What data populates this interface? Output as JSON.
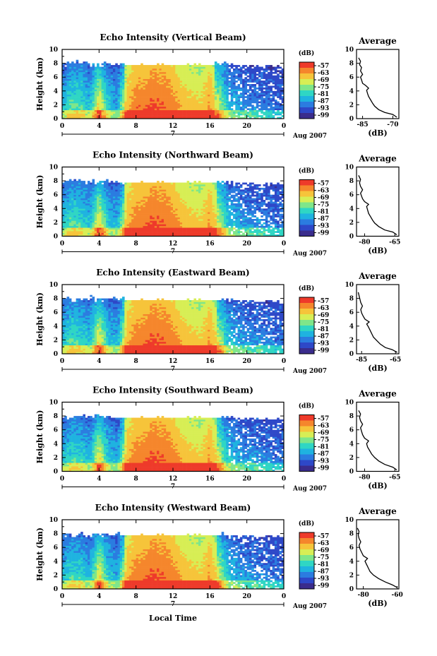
{
  "figure": {
    "bottom_xlabel": "Local Time",
    "colors": {
      "scale": [
        "#3a2c8c",
        "#2e48c8",
        "#2b7ce0",
        "#1fb3e0",
        "#2fd6c4",
        "#7ee68a",
        "#d7ee55",
        "#f6c43a",
        "#f5862c",
        "#ee3a2a"
      ]
    }
  },
  "chart_data": [
    {
      "type": "heatmap",
      "title": "Echo Intensity (Vertical Beam)",
      "ylabel": "Height (km)",
      "xlim": [
        0,
        24
      ],
      "ylim": [
        0,
        10
      ],
      "xticks": [
        "0",
        "4",
        "8",
        "12",
        "16",
        "20",
        "0"
      ],
      "yticks": [
        "0",
        "2",
        "4",
        "6",
        "8",
        "10"
      ],
      "date_marker": "7",
      "date_label": "Aug 2007",
      "colorbar": {
        "unit": "(dB)",
        "ticks": [
          "-57",
          "-63",
          "-69",
          "-75",
          "-81",
          "-87",
          "-93",
          "-99"
        ]
      },
      "intensity_profile": [
        0.4,
        0.55,
        0.55,
        0.42,
        0.82,
        0.45,
        0.35,
        0.85,
        0.95,
        0.96,
        0.99,
        0.98,
        0.93,
        0.85,
        0.82,
        0.8,
        0.9,
        0.7,
        0.4,
        0.35,
        0.3,
        0.28,
        0.25,
        0.22
      ],
      "average": {
        "title": "Average",
        "xlabel": "(dB)",
        "xticks": [
          "-85",
          "-70"
        ],
        "xlim": [
          -88,
          -67
        ],
        "ylim": [
          0,
          10
        ],
        "yticks": [
          "0",
          "2",
          "4",
          "6",
          "8",
          "10"
        ],
        "points": [
          [
            -68,
            0.2
          ],
          [
            -70,
            0.6
          ],
          [
            -74,
            0.9
          ],
          [
            -77,
            1.3
          ],
          [
            -79,
            1.8
          ],
          [
            -80,
            2.2
          ],
          [
            -81,
            2.7
          ],
          [
            -82,
            3.2
          ],
          [
            -82.5,
            3.6
          ],
          [
            -83,
            4.1
          ],
          [
            -82,
            4.4
          ],
          [
            -83.5,
            4.8
          ],
          [
            -85,
            5.1
          ],
          [
            -85.5,
            5.6
          ],
          [
            -86,
            6.0
          ],
          [
            -85,
            6.4
          ],
          [
            -86,
            6.9
          ],
          [
            -85.5,
            7.4
          ],
          [
            -86.5,
            7.8
          ],
          [
            -86,
            8.3
          ],
          [
            -87,
            8.8
          ]
        ]
      }
    },
    {
      "type": "heatmap",
      "title": "Echo Intensity (Northward Beam)",
      "ylabel": "Height (km)",
      "xlim": [
        0,
        24
      ],
      "ylim": [
        0,
        10
      ],
      "xticks": [
        "0",
        "4",
        "8",
        "12",
        "16",
        "20",
        "0"
      ],
      "yticks": [
        "0",
        "2",
        "4",
        "6",
        "8",
        "10"
      ],
      "date_marker": "7",
      "date_label": "Aug 2007",
      "colorbar": {
        "unit": "(dB)",
        "ticks": [
          "-57",
          "-63",
          "-69",
          "-75",
          "-81",
          "-87",
          "-93",
          "-99"
        ]
      },
      "intensity_profile": [
        0.42,
        0.55,
        0.52,
        0.42,
        0.8,
        0.45,
        0.38,
        0.86,
        0.94,
        0.96,
        0.99,
        0.98,
        0.93,
        0.86,
        0.82,
        0.8,
        0.9,
        0.72,
        0.42,
        0.36,
        0.32,
        0.3,
        0.28,
        0.25
      ],
      "average": {
        "title": "Average",
        "xlabel": "(dB)",
        "xticks": [
          "-80",
          "-65"
        ],
        "xlim": [
          -84,
          -63
        ],
        "ylim": [
          0,
          10
        ],
        "yticks": [
          "0",
          "2",
          "4",
          "6",
          "8",
          "10"
        ],
        "points": [
          [
            -64,
            0.2
          ],
          [
            -66,
            0.6
          ],
          [
            -70,
            0.9
          ],
          [
            -73,
            1.4
          ],
          [
            -75,
            1.9
          ],
          [
            -76,
            2.3
          ],
          [
            -77,
            2.8
          ],
          [
            -78,
            3.3
          ],
          [
            -78.5,
            3.8
          ],
          [
            -79,
            4.3
          ],
          [
            -78,
            4.6
          ],
          [
            -80,
            5.0
          ],
          [
            -81,
            5.4
          ],
          [
            -81.5,
            5.8
          ],
          [
            -82,
            6.2
          ],
          [
            -81,
            6.7
          ],
          [
            -82,
            7.2
          ],
          [
            -82.5,
            7.7
          ],
          [
            -82,
            8.2
          ],
          [
            -83,
            8.8
          ]
        ]
      }
    },
    {
      "type": "heatmap",
      "title": "Echo Intensity (Eastward Beam)",
      "ylabel": "Height (km)",
      "xlim": [
        0,
        24
      ],
      "ylim": [
        0,
        10
      ],
      "xticks": [
        "0",
        "4",
        "8",
        "12",
        "16",
        "20",
        "0"
      ],
      "yticks": [
        "0",
        "2",
        "4",
        "6",
        "8",
        "10"
      ],
      "date_marker": "7",
      "date_label": "Aug 2007",
      "colorbar": {
        "unit": "(dB)",
        "ticks": [
          "-57",
          "-63",
          "-69",
          "-75",
          "-81",
          "-87",
          "-93",
          "-99"
        ]
      },
      "intensity_profile": [
        0.42,
        0.55,
        0.52,
        0.42,
        0.8,
        0.45,
        0.38,
        0.86,
        0.94,
        0.96,
        0.99,
        0.98,
        0.93,
        0.86,
        0.82,
        0.8,
        0.9,
        0.72,
        0.42,
        0.36,
        0.32,
        0.3,
        0.28,
        0.25
      ],
      "average": {
        "title": "Average",
        "xlabel": "(dB)",
        "xticks": [
          "-85",
          "-65"
        ],
        "xlim": [
          -88,
          -63
        ],
        "ylim": [
          0,
          10
        ],
        "yticks": [
          "0",
          "2",
          "4",
          "6",
          "8",
          "10"
        ],
        "points": [
          [
            -64,
            0.2
          ],
          [
            -67,
            0.6
          ],
          [
            -71,
            0.9
          ],
          [
            -74,
            1.4
          ],
          [
            -76,
            1.9
          ],
          [
            -78,
            2.4
          ],
          [
            -79,
            2.9
          ],
          [
            -80,
            3.4
          ],
          [
            -81,
            3.9
          ],
          [
            -82,
            4.3
          ],
          [
            -80.5,
            4.6
          ],
          [
            -83,
            5.0
          ],
          [
            -84,
            5.4
          ],
          [
            -85,
            5.9
          ],
          [
            -85.5,
            6.4
          ],
          [
            -84.5,
            6.9
          ],
          [
            -85.5,
            7.4
          ],
          [
            -86,
            7.9
          ],
          [
            -86.5,
            8.4
          ],
          [
            -87,
            8.9
          ]
        ]
      }
    },
    {
      "type": "heatmap",
      "title": "Echo Intensity (Southward Beam)",
      "ylabel": "Height (km)",
      "xlim": [
        0,
        24
      ],
      "ylim": [
        0,
        10
      ],
      "xticks": [
        "0",
        "4",
        "8",
        "12",
        "16",
        "20",
        "0"
      ],
      "yticks": [
        "0",
        "2",
        "4",
        "6",
        "8",
        "10"
      ],
      "date_marker": "7",
      "date_label": "Aug 2007",
      "colorbar": {
        "unit": "(dB)",
        "ticks": [
          "-57",
          "-63",
          "-69",
          "-75",
          "-81",
          "-87",
          "-93",
          "-99"
        ]
      },
      "intensity_profile": [
        0.4,
        0.52,
        0.5,
        0.4,
        0.8,
        0.45,
        0.36,
        0.86,
        0.94,
        0.96,
        0.99,
        0.98,
        0.93,
        0.86,
        0.82,
        0.8,
        0.9,
        0.72,
        0.42,
        0.36,
        0.32,
        0.3,
        0.28,
        0.25
      ],
      "average": {
        "title": "Average",
        "xlabel": "(dB)",
        "xticks": [
          "-80",
          "-65"
        ],
        "xlim": [
          -84,
          -63
        ],
        "ylim": [
          0,
          10
        ],
        "yticks": [
          "0",
          "2",
          "4",
          "6",
          "8",
          "10"
        ],
        "points": [
          [
            -64,
            0.2
          ],
          [
            -66,
            0.6
          ],
          [
            -70,
            1.0
          ],
          [
            -73,
            1.5
          ],
          [
            -75,
            2.0
          ],
          [
            -76.5,
            2.5
          ],
          [
            -77.5,
            3.0
          ],
          [
            -78.5,
            3.5
          ],
          [
            -79,
            4.0
          ],
          [
            -78,
            4.4
          ],
          [
            -80,
            4.8
          ],
          [
            -81,
            5.3
          ],
          [
            -81.5,
            5.8
          ],
          [
            -82,
            6.3
          ],
          [
            -81,
            6.8
          ],
          [
            -82,
            7.3
          ],
          [
            -82.5,
            7.8
          ],
          [
            -82,
            8.3
          ],
          [
            -83,
            8.8
          ]
        ]
      }
    },
    {
      "type": "heatmap",
      "title": "Echo Intensity (Westward Beam)",
      "ylabel": "Height (km)",
      "xlim": [
        0,
        24
      ],
      "ylim": [
        0,
        10
      ],
      "xticks": [
        "0",
        "4",
        "8",
        "12",
        "16",
        "20",
        "0"
      ],
      "yticks": [
        "0",
        "2",
        "4",
        "6",
        "8",
        "10"
      ],
      "date_marker": "7",
      "date_label": "Aug 2007",
      "colorbar": {
        "unit": "(dB)",
        "ticks": [
          "-57",
          "-63",
          "-69",
          "-75",
          "-81",
          "-87",
          "-93",
          "-99"
        ]
      },
      "intensity_profile": [
        0.4,
        0.52,
        0.5,
        0.4,
        0.8,
        0.45,
        0.36,
        0.86,
        0.94,
        0.96,
        0.99,
        0.98,
        0.93,
        0.86,
        0.82,
        0.8,
        0.9,
        0.72,
        0.42,
        0.36,
        0.32,
        0.3,
        0.28,
        0.25
      ],
      "average": {
        "title": "Average",
        "xlabel": "(dB)",
        "xticks": [
          "-80",
          "-60"
        ],
        "xlim": [
          -84,
          -59
        ],
        "ylim": [
          0,
          10
        ],
        "yticks": [
          "0",
          "2",
          "4",
          "6",
          "8",
          "10"
        ],
        "points": [
          [
            -60,
            0.2
          ],
          [
            -63,
            0.6
          ],
          [
            -67,
            1.0
          ],
          [
            -71,
            1.5
          ],
          [
            -74,
            2.0
          ],
          [
            -76,
            2.5
          ],
          [
            -77,
            3.0
          ],
          [
            -78,
            3.5
          ],
          [
            -79,
            4.0
          ],
          [
            -77.5,
            4.4
          ],
          [
            -80,
            4.8
          ],
          [
            -81,
            5.3
          ],
          [
            -82,
            5.8
          ],
          [
            -82.5,
            6.3
          ],
          [
            -81.5,
            6.8
          ],
          [
            -82.5,
            7.3
          ],
          [
            -83,
            7.8
          ],
          [
            -82.5,
            8.3
          ],
          [
            -83.5,
            8.8
          ]
        ]
      }
    }
  ]
}
